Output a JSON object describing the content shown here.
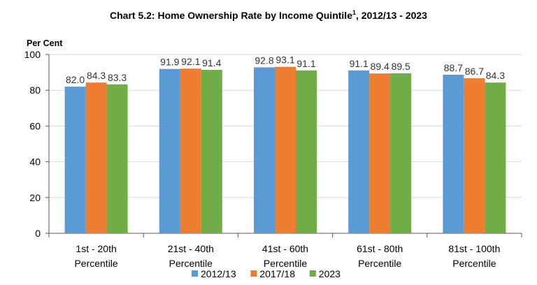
{
  "chart_data": {
    "type": "bar",
    "title_prefix": "Chart 5.2: Home Ownership Rate by Income Quintile",
    "title_sup": "1",
    "title_suffix": ", 2012/13 - 2023",
    "ylabel": "Per Cent",
    "ylim": [
      0,
      100
    ],
    "yticks": [
      0,
      20,
      40,
      60,
      80,
      100
    ],
    "categories": [
      [
        "1st - 20th",
        "Percentile"
      ],
      [
        "21st - 40th",
        "Percentile"
      ],
      [
        "41st - 60th",
        "Percentile"
      ],
      [
        "61st - 80th",
        "Percentile"
      ],
      [
        "81st - 100th",
        "Percentile"
      ]
    ],
    "series": [
      {
        "name": "2012/13",
        "color": "#5B9BD5",
        "values": [
          82.0,
          91.9,
          92.8,
          91.1,
          88.7
        ]
      },
      {
        "name": "2017/18",
        "color": "#ED7D31",
        "values": [
          84.3,
          92.1,
          93.1,
          89.4,
          86.7
        ]
      },
      {
        "name": "2023",
        "color": "#70AD47",
        "values": [
          83.3,
          91.4,
          91.1,
          89.5,
          84.3
        ]
      }
    ],
    "legend_position": "bottom"
  }
}
